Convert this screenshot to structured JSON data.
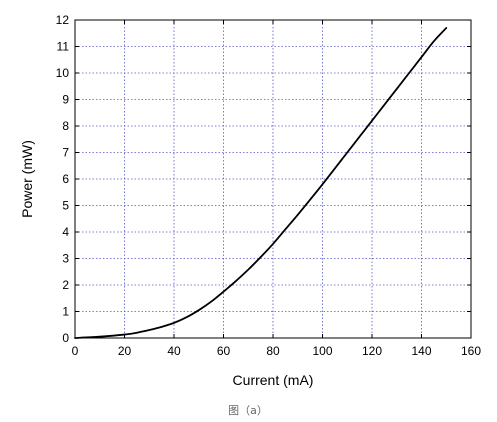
{
  "chart_data": {
    "type": "line",
    "title": "",
    "xlabel": "Current (mA)",
    "ylabel": "Power (mW)",
    "xlim": [
      0,
      160
    ],
    "ylim": [
      0,
      12
    ],
    "xticks": [
      0,
      20,
      40,
      60,
      80,
      100,
      120,
      140,
      160
    ],
    "yticks": [
      0,
      1,
      2,
      3,
      4,
      5,
      6,
      7,
      8,
      9,
      10,
      11,
      12
    ],
    "xtick_labels": [
      "0",
      "20",
      "40",
      "60",
      "80",
      "100",
      "120",
      "140",
      "160"
    ],
    "ytick_labels": [
      "0",
      "1",
      "2",
      "3",
      "4",
      "5",
      "6",
      "7",
      "8",
      "9",
      "10",
      "11",
      "12"
    ],
    "grid": true,
    "grid_color": "#5555cc",
    "series": [
      {
        "color": "#000000",
        "x": [
          0,
          10,
          20,
          25,
          30,
          35,
          40,
          45,
          50,
          55,
          60,
          65,
          70,
          75,
          80,
          85,
          90,
          95,
          100,
          105,
          110,
          115,
          120,
          125,
          130,
          135,
          140,
          145,
          150
        ],
        "y": [
          0,
          0.05,
          0.13,
          0.2,
          0.3,
          0.42,
          0.57,
          0.78,
          1.05,
          1.37,
          1.75,
          2.15,
          2.58,
          3.05,
          3.55,
          4.1,
          4.65,
          5.22,
          5.8,
          6.4,
          7.0,
          7.6,
          8.2,
          8.8,
          9.4,
          10.0,
          10.6,
          11.2,
          11.7
        ]
      }
    ]
  },
  "caption": "图（a）"
}
